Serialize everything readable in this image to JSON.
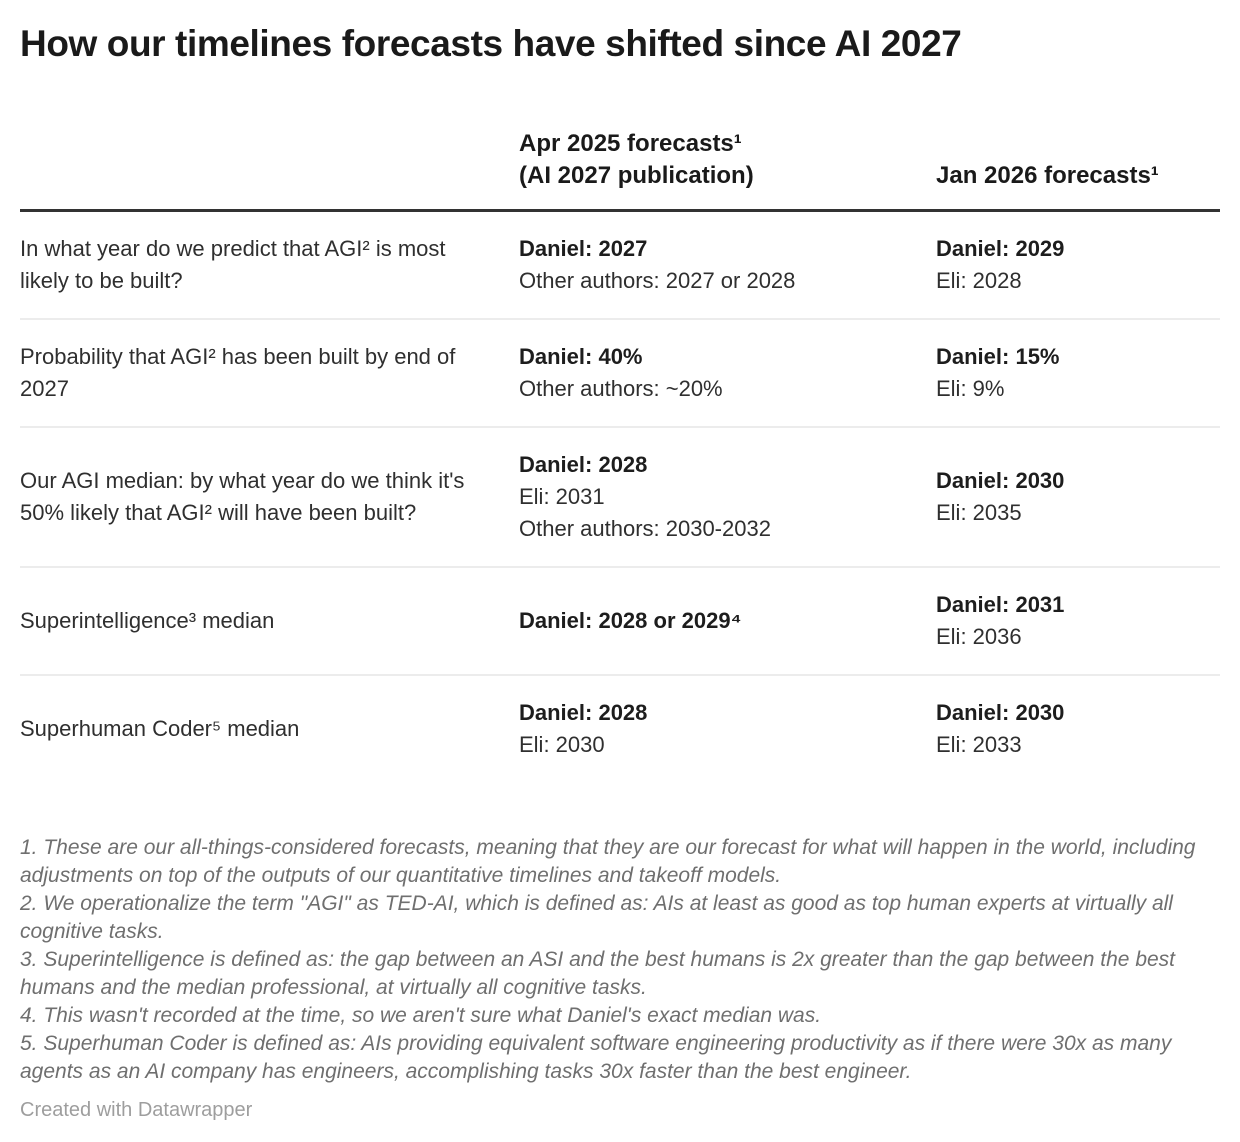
{
  "chart_data": {
    "type": "table",
    "title": "How our timelines forecasts have shifted since AI 2027",
    "columns": {
      "question_col": "",
      "apr2025_line1": "Apr 2025 forecasts¹",
      "apr2025_line2": "(AI 2027 publication)",
      "jan2026": "Jan 2026 forecasts¹"
    },
    "rows": [
      {
        "question": "In what year do we predict that AGI² is most likely to be built?",
        "apr2025": [
          {
            "text": "Daniel: 2027",
            "bold": true
          },
          {
            "text": "Other authors: 2027 or 2028",
            "bold": false
          }
        ],
        "jan2026": [
          {
            "text": "Daniel: 2029",
            "bold": true
          },
          {
            "text": "Eli: 2028",
            "bold": false
          }
        ]
      },
      {
        "question": "Probability that AGI² has been built by end of 2027",
        "apr2025": [
          {
            "text": "Daniel: 40%",
            "bold": true
          },
          {
            "text": "Other authors: ~20%",
            "bold": false
          }
        ],
        "jan2026": [
          {
            "text": "Daniel: 15%",
            "bold": true
          },
          {
            "text": "Eli: 9%",
            "bold": false
          }
        ]
      },
      {
        "question": "Our AGI median: by what year do we think it's 50% likely that AGI² will have been built?",
        "apr2025": [
          {
            "text": "Daniel: 2028",
            "bold": true
          },
          {
            "text": "Eli: 2031",
            "bold": false
          },
          {
            "text": "Other authors: 2030-2032",
            "bold": false
          }
        ],
        "jan2026": [
          {
            "text": "Daniel: 2030",
            "bold": true
          },
          {
            "text": "Eli: 2035",
            "bold": false
          }
        ]
      },
      {
        "question": "Superintelligence³ median",
        "apr2025": [
          {
            "text": "Daniel: 2028 or 2029⁴",
            "bold": true
          }
        ],
        "jan2026": [
          {
            "text": "Daniel: 2031",
            "bold": true
          },
          {
            "text": "Eli: 2036",
            "bold": false
          }
        ]
      },
      {
        "question": "Superhuman Coder⁵ median",
        "apr2025": [
          {
            "text": "Daniel: 2028",
            "bold": true
          },
          {
            "text": "Eli: 2030",
            "bold": false
          }
        ],
        "jan2026": [
          {
            "text": "Daniel: 2030",
            "bold": true
          },
          {
            "text": "Eli: 2033",
            "bold": false
          }
        ]
      }
    ],
    "footnotes": [
      "1. These are our all-things-considered forecasts, meaning that they are our forecast for what will happen in the world, including adjustments on top of the outputs of our quantitative timelines and takeoff models.",
      "2. We operationalize the term \"AGI\" as TED-AI, which is defined as: AIs at least as good as top human experts at virtually all cognitive tasks.",
      "3. Superintelligence is defined as: the gap between an ASI and the best humans is 2x greater than the gap between the best humans and the median professional, at virtually all cognitive tasks.",
      "4. This wasn't recorded at the time, so we aren't sure what Daniel's exact median was.",
      "5. Superhuman Coder is defined as: AIs providing equivalent software engineering productivity as if there were 30x as many agents as an AI company has engineers, accomplishing tasks 30x faster than the best engineer."
    ],
    "credit": "Created with Datawrapper",
    "colors": {
      "background": "#ffffff",
      "text": "#2f2f2f",
      "emphasis": "#1d1d1d",
      "rule_heavy": "#333333",
      "rule_light": "#ececec",
      "footnote": "#6f6f6f",
      "credit": "#9e9e9e"
    }
  }
}
